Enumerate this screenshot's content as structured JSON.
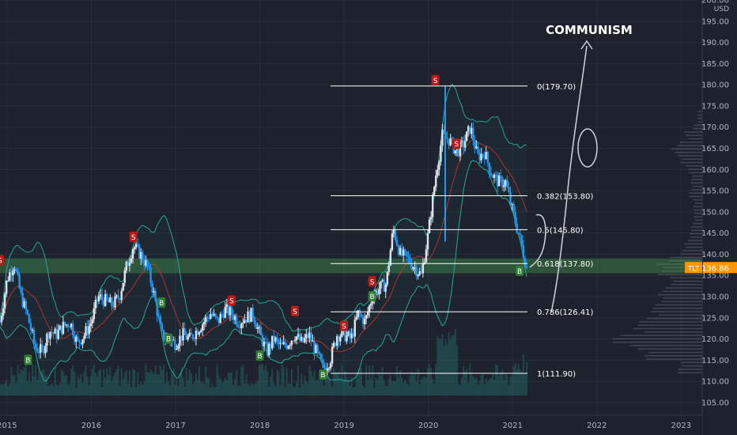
{
  "chart_data": {
    "type": "candlestick",
    "symbol": "TLT",
    "currency": "USD",
    "last_price": "136.86",
    "y_range": [
      102,
      200
    ],
    "x_range": [
      "2014-12",
      "2023-04"
    ],
    "y_ticks": [
      "200.00",
      "195.00",
      "190.00",
      "185.00",
      "180.00",
      "175.00",
      "170.00",
      "165.00",
      "160.00",
      "155.00",
      "150.00",
      "145.00",
      "140.00",
      "135.00",
      "130.00",
      "125.00",
      "120.00",
      "115.00",
      "110.00",
      "105.00"
    ],
    "x_ticks": [
      "2015",
      "2016",
      "2017",
      "2018",
      "2019",
      "2020",
      "2021",
      "2022",
      "2023"
    ],
    "annotation": "COMMUNISM",
    "fib_levels": [
      {
        "label": "0(179.70)",
        "value": 179.7
      },
      {
        "label": "0.382(153.80)",
        "value": 153.8
      },
      {
        "label": "0.5(145.80)",
        "value": 145.8
      },
      {
        "label": "0.618(137.80)",
        "value": 137.8
      },
      {
        "label": "0.786(126.41)",
        "value": 126.41
      },
      {
        "label": "1(111.90)",
        "value": 111.9
      }
    ],
    "support_zone": [
      135.5,
      139.0
    ],
    "signals": [
      {
        "t": "2014-12",
        "y": 138.5,
        "type": "S"
      },
      {
        "t": "2015-04",
        "y": 115.0,
        "type": "B"
      },
      {
        "t": "2016-07",
        "y": 144.0,
        "type": "S"
      },
      {
        "t": "2016-11",
        "y": 128.5,
        "type": "B"
      },
      {
        "t": "2016-12",
        "y": 120.0,
        "type": "B"
      },
      {
        "t": "2017-09",
        "y": 129.0,
        "type": "S"
      },
      {
        "t": "2018-01",
        "y": 116.0,
        "type": "B"
      },
      {
        "t": "2018-06",
        "y": 126.5,
        "type": "S"
      },
      {
        "t": "2018-10",
        "y": 111.5,
        "type": "B"
      },
      {
        "t": "2019-01",
        "y": 123.0,
        "type": "S"
      },
      {
        "t": "2019-05",
        "y": 133.5,
        "type": "S"
      },
      {
        "t": "2019-05",
        "y": 130.0,
        "type": "B"
      },
      {
        "t": "2020-02",
        "y": 181.0,
        "type": "S"
      },
      {
        "t": "2020-05",
        "y": 166.0,
        "type": "S"
      },
      {
        "t": "2021-02",
        "y": 136.0,
        "type": "B"
      }
    ],
    "price_path": [
      [
        "2014-12",
        124
      ],
      [
        "2015-01",
        134
      ],
      [
        "2015-02",
        138
      ],
      [
        "2015-03",
        130
      ],
      [
        "2015-04",
        125
      ],
      [
        "2015-05",
        118
      ],
      [
        "2015-06",
        117
      ],
      [
        "2015-07",
        122
      ],
      [
        "2015-08",
        121
      ],
      [
        "2015-09",
        123
      ],
      [
        "2015-10",
        124
      ],
      [
        "2015-11",
        119
      ],
      [
        "2015-12",
        121
      ],
      [
        "2016-01",
        124
      ],
      [
        "2016-02",
        130
      ],
      [
        "2016-03",
        129
      ],
      [
        "2016-04",
        128
      ],
      [
        "2016-05",
        130
      ],
      [
        "2016-06",
        137
      ],
      [
        "2016-07",
        142
      ],
      [
        "2016-08",
        140
      ],
      [
        "2016-09",
        137
      ],
      [
        "2016-10",
        130
      ],
      [
        "2016-11",
        121
      ],
      [
        "2016-12",
        120
      ],
      [
        "2017-01",
        119
      ],
      [
        "2017-02",
        121
      ],
      [
        "2017-03",
        120
      ],
      [
        "2017-04",
        122
      ],
      [
        "2017-05",
        124
      ],
      [
        "2017-06",
        126
      ],
      [
        "2017-07",
        124
      ],
      [
        "2017-08",
        127
      ],
      [
        "2017-09",
        126
      ],
      [
        "2017-10",
        124
      ],
      [
        "2017-11",
        125
      ],
      [
        "2017-12",
        126
      ],
      [
        "2018-01",
        121
      ],
      [
        "2018-02",
        117
      ],
      [
        "2018-03",
        120
      ],
      [
        "2018-04",
        118
      ],
      [
        "2018-05",
        119
      ],
      [
        "2018-06",
        121
      ],
      [
        "2018-07",
        119
      ],
      [
        "2018-08",
        121
      ],
      [
        "2018-09",
        117
      ],
      [
        "2018-10",
        113
      ],
      [
        "2018-11",
        115
      ],
      [
        "2018-12",
        121
      ],
      [
        "2019-01",
        121
      ],
      [
        "2019-02",
        120
      ],
      [
        "2019-03",
        126
      ],
      [
        "2019-04",
        124
      ],
      [
        "2019-05",
        130
      ],
      [
        "2019-06",
        132
      ],
      [
        "2019-07",
        133
      ],
      [
        "2019-08",
        146
      ],
      [
        "2019-09",
        140
      ],
      [
        "2019-10",
        139
      ],
      [
        "2019-11",
        137
      ],
      [
        "2019-12",
        135
      ],
      [
        "2020-01",
        145
      ],
      [
        "2020-02",
        158
      ],
      [
        "2020-03",
        168
      ],
      [
        "2020-04",
        167
      ],
      [
        "2020-05",
        164
      ],
      [
        "2020-06",
        166
      ],
      [
        "2020-07",
        170
      ],
      [
        "2020-08",
        163
      ],
      [
        "2020-09",
        164
      ],
      [
        "2020-10",
        159
      ],
      [
        "2020-11",
        157
      ],
      [
        "2020-12",
        157
      ],
      [
        "2021-01",
        150
      ],
      [
        "2021-02",
        144
      ],
      [
        "2021-03",
        136.86
      ]
    ],
    "volume_profile": [
      [
        137,
        62
      ],
      [
        139,
        40
      ],
      [
        136,
        54
      ],
      [
        140,
        30
      ],
      [
        142,
        22
      ],
      [
        144,
        18
      ],
      [
        146,
        14
      ],
      [
        148,
        12
      ],
      [
        150,
        10
      ],
      [
        152,
        12
      ],
      [
        154,
        16
      ],
      [
        156,
        15
      ],
      [
        158,
        13
      ],
      [
        160,
        20
      ],
      [
        162,
        26
      ],
      [
        164,
        38
      ],
      [
        166,
        30
      ],
      [
        168,
        22
      ],
      [
        170,
        12
      ],
      [
        172,
        6
      ],
      [
        134,
        40
      ],
      [
        132,
        48
      ],
      [
        130,
        56
      ],
      [
        128,
        60
      ],
      [
        126,
        66
      ],
      [
        124,
        78
      ],
      [
        122,
        92
      ],
      [
        120,
        110
      ],
      [
        118,
        100
      ],
      [
        116,
        70
      ],
      [
        114,
        30
      ]
    ]
  }
}
